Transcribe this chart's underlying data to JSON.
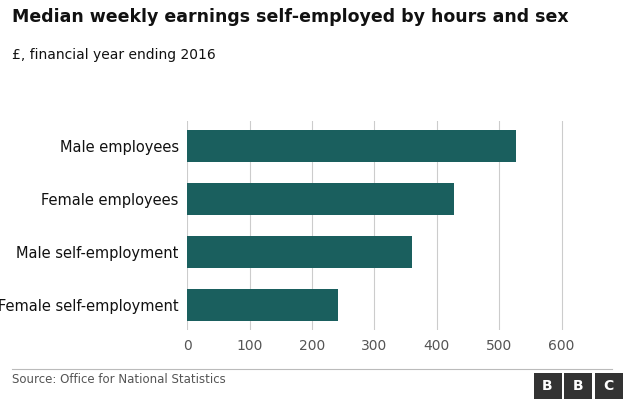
{
  "title": "Median weekly earnings self-employed by hours and sex",
  "subtitle": "£, financial year ending 2016",
  "categories": [
    "Male employees",
    "Female employees",
    "Male self-employment",
    "Female self-employment"
  ],
  "values": [
    527,
    427,
    360,
    242
  ],
  "bar_color": "#1a5f5e",
  "xlim": [
    0,
    660
  ],
  "xticks": [
    0,
    100,
    200,
    300,
    400,
    500,
    600
  ],
  "source": "Source: Office for National Statistics",
  "bbc_label": "BBC",
  "background_color": "#ffffff",
  "grid_color": "#cccccc",
  "text_color": "#111111"
}
